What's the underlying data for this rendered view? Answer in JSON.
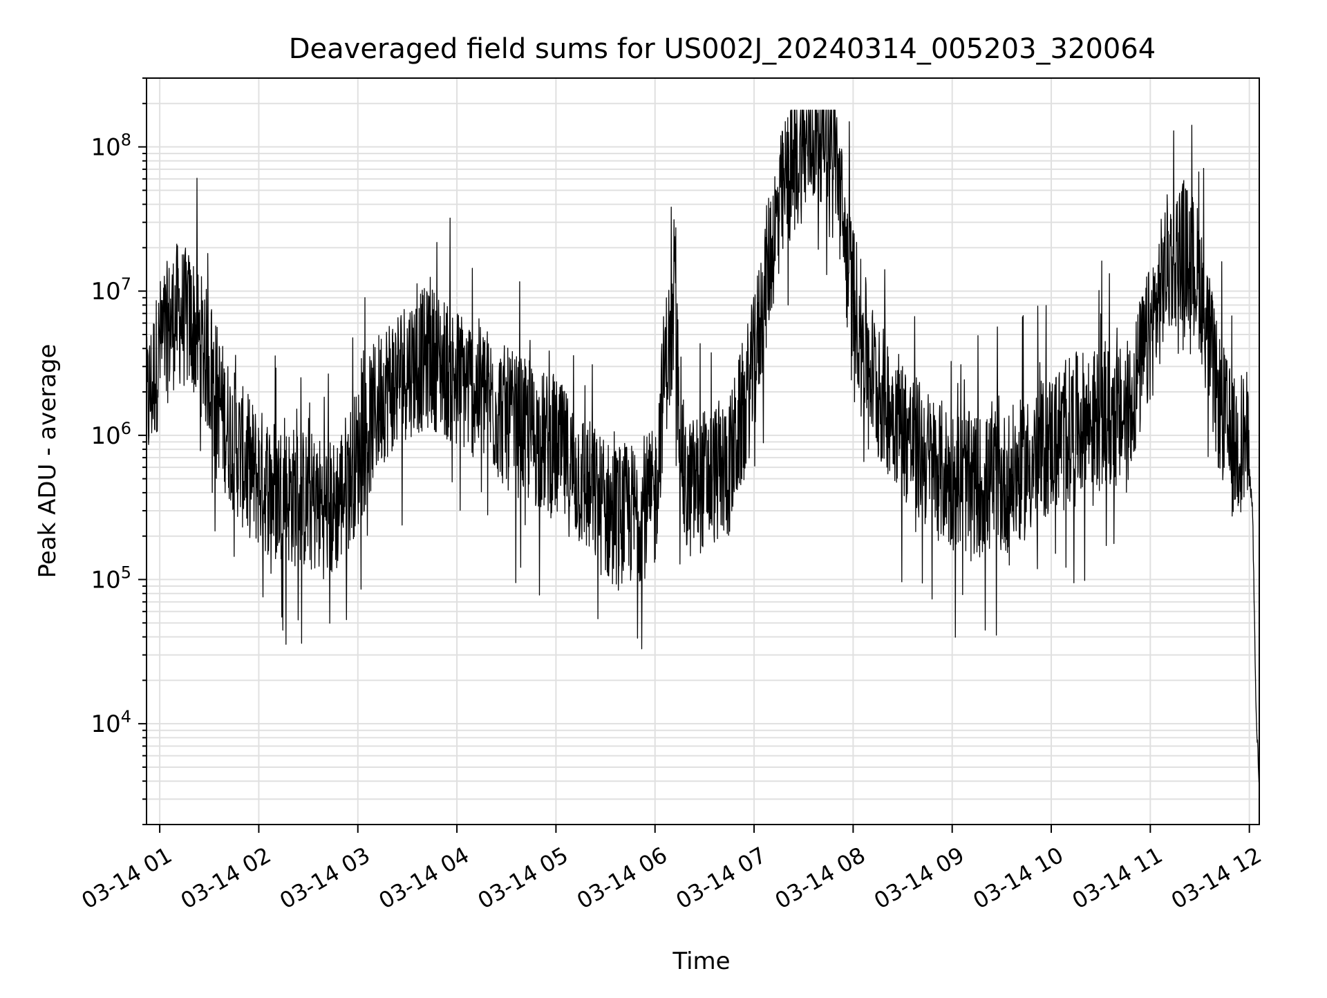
{
  "chart_data": {
    "type": "line",
    "title": "Deaveraged field sums for US002J_20240314_005203_320064",
    "xlabel": "Time",
    "ylabel": "Peak ADU - average",
    "yscale": "log",
    "grid": true,
    "legend": "none",
    "xlim": [
      "2024-03-14 00:52",
      "2024-03-14 12:06"
    ],
    "ylim": [
      2000,
      300000000
    ],
    "x_tick_labels": [
      "03-14 01",
      "03-14 02",
      "03-14 03",
      "03-14 04",
      "03-14 05",
      "03-14 06",
      "03-14 07",
      "03-14 08",
      "03-14 09",
      "03-14 10",
      "03-14 11",
      "03-14 12"
    ],
    "x_ticks": [
      "2024-03-14 01:00",
      "2024-03-14 02:00",
      "2024-03-14 03:00",
      "2024-03-14 04:00",
      "2024-03-14 05:00",
      "2024-03-14 06:00",
      "2024-03-14 07:00",
      "2024-03-14 08:00",
      "2024-03-14 09:00",
      "2024-03-14 10:00",
      "2024-03-14 11:00",
      "2024-03-14 12:00"
    ],
    "y_ticks": [
      10000,
      100000,
      1000000,
      10000000,
      100000000
    ],
    "y_tick_labels": [
      {
        "base": "10",
        "exp": "4"
      },
      {
        "base": "10",
        "exp": "5"
      },
      {
        "base": "10",
        "exp": "6"
      },
      {
        "base": "10",
        "exp": "7"
      },
      {
        "base": "10",
        "exp": "8"
      }
    ],
    "line_color": "#000000",
    "grid_color": "#e0e0e0",
    "series": [
      {
        "x": [
          "2024-03-14 00:52",
          "2024-03-14 01:00",
          "2024-03-14 01:10",
          "2024-03-14 01:20",
          "2024-03-14 01:30",
          "2024-03-14 01:40",
          "2024-03-14 01:50",
          "2024-03-14 02:00",
          "2024-03-14 02:15",
          "2024-03-14 02:30",
          "2024-03-14 02:45",
          "2024-03-14 03:00",
          "2024-03-14 03:15",
          "2024-03-14 03:30",
          "2024-03-14 03:45",
          "2024-03-14 04:00",
          "2024-03-14 04:15",
          "2024-03-14 04:30",
          "2024-03-14 04:45",
          "2024-03-14 05:00",
          "2024-03-14 05:15",
          "2024-03-14 05:30",
          "2024-03-14 05:45",
          "2024-03-14 06:00",
          "2024-03-14 06:06",
          "2024-03-14 06:12",
          "2024-03-14 06:18",
          "2024-03-14 06:30",
          "2024-03-14 06:45",
          "2024-03-14 07:00",
          "2024-03-14 07:10",
          "2024-03-14 07:20",
          "2024-03-14 07:30",
          "2024-03-14 07:40",
          "2024-03-14 07:48",
          "2024-03-14 07:55",
          "2024-03-14 08:05",
          "2024-03-14 08:15",
          "2024-03-14 08:25",
          "2024-03-14 08:35",
          "2024-03-14 08:50",
          "2024-03-14 09:00",
          "2024-03-14 09:15",
          "2024-03-14 09:30",
          "2024-03-14 09:45",
          "2024-03-14 10:00",
          "2024-03-14 10:15",
          "2024-03-14 10:30",
          "2024-03-14 10:45",
          "2024-03-14 11:00",
          "2024-03-14 11:10",
          "2024-03-14 11:20",
          "2024-03-14 11:30",
          "2024-03-14 11:40",
          "2024-03-14 11:50",
          "2024-03-14 11:58",
          "2024-03-14 12:02",
          "2024-03-14 12:04",
          "2024-03-14 12:06"
        ],
        "y": [
          1500000,
          4000000,
          7000000,
          6000000,
          3000000,
          1200000,
          700000,
          500000,
          400000,
          350000,
          300000,
          700000,
          2000000,
          3000000,
          3500000,
          2500000,
          2000000,
          1300000,
          1000000,
          800000,
          500000,
          300000,
          280000,
          350000,
          3000000,
          6000000,
          400000,
          500000,
          600000,
          3000000,
          20000000,
          60000000,
          100000000,
          130000000,
          140000000,
          20000000,
          5000000,
          2000000,
          1500000,
          900000,
          600000,
          500000,
          450000,
          450000,
          600000,
          900000,
          1200000,
          1300000,
          1300000,
          5000000,
          15000000,
          20000000,
          12000000,
          2000000,
          800000,
          1000000,
          300000,
          12000,
          3800
        ]
      }
    ]
  }
}
